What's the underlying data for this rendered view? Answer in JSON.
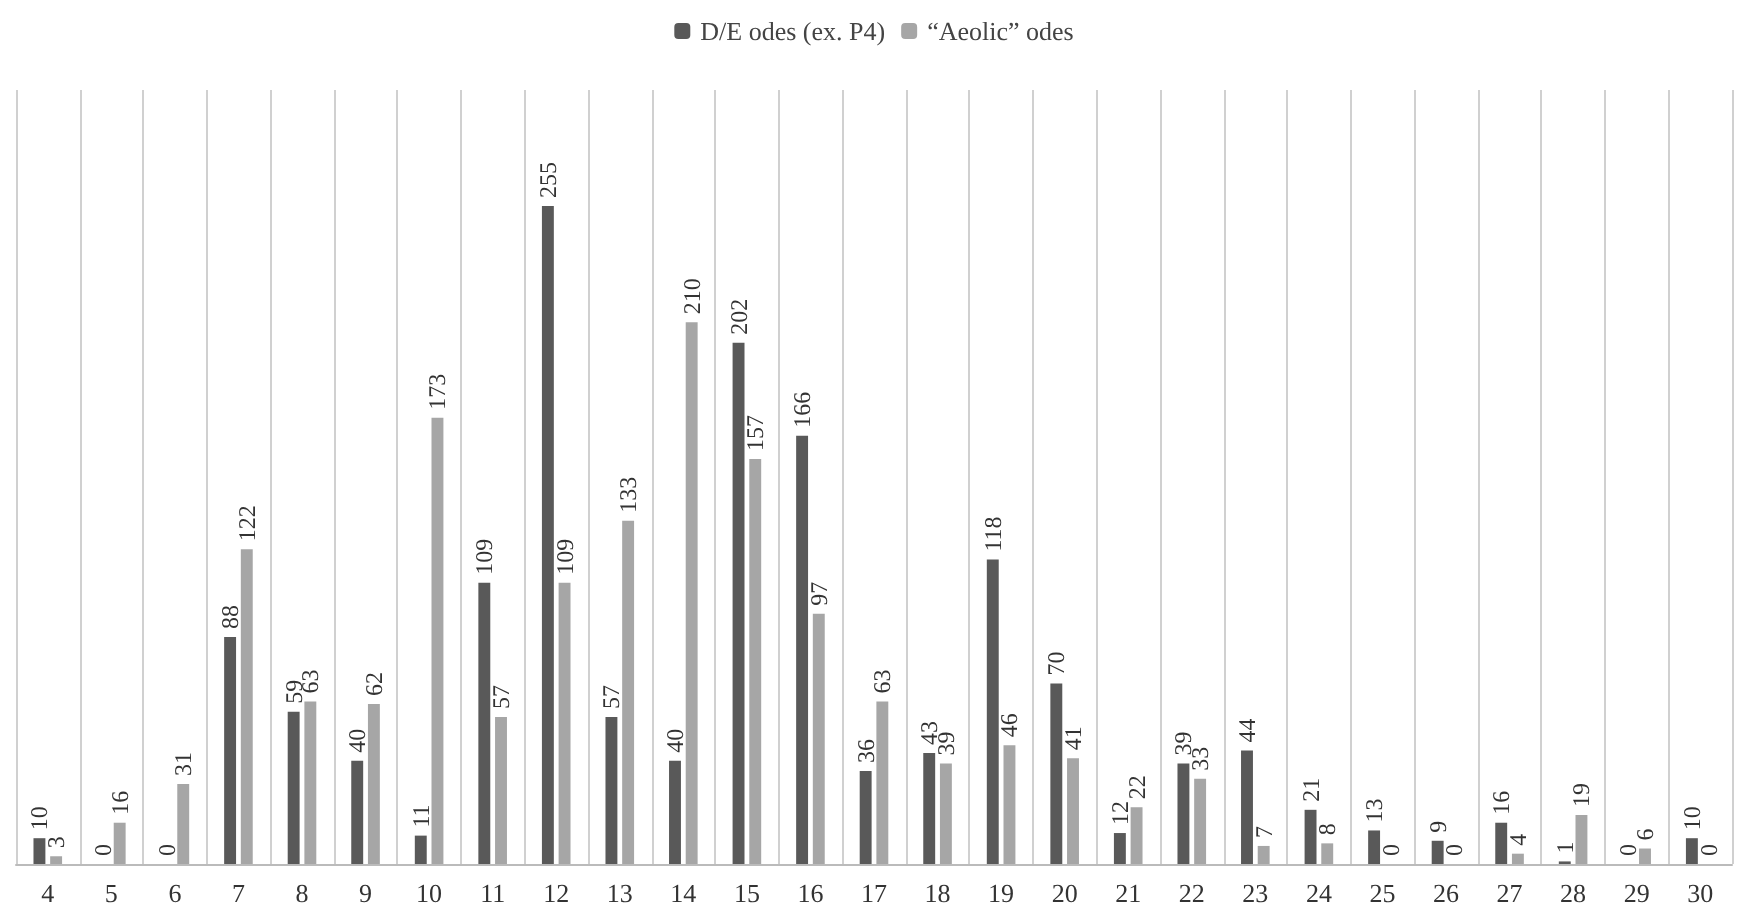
{
  "chart_data": {
    "type": "bar",
    "categories": [
      "4",
      "5",
      "6",
      "7",
      "8",
      "9",
      "10",
      "11",
      "12",
      "13",
      "14",
      "15",
      "16",
      "17",
      "18",
      "19",
      "20",
      "21",
      "22",
      "23",
      "24",
      "25",
      "26",
      "27",
      "28",
      "29",
      "30"
    ],
    "series": [
      {
        "name": "D/E odes (ex. P4)",
        "color": "#595959",
        "values": [
          10,
          0,
          0,
          88,
          59,
          40,
          11,
          109,
          255,
          57,
          40,
          202,
          166,
          36,
          43,
          118,
          70,
          12,
          39,
          44,
          21,
          13,
          9,
          16,
          1,
          0,
          10
        ]
      },
      {
        "name": "“Aeolic” odes",
        "color": "#a6a6a6",
        "values": [
          3,
          16,
          31,
          122,
          63,
          62,
          173,
          57,
          109,
          133,
          210,
          157,
          97,
          63,
          39,
          46,
          41,
          22,
          33,
          7,
          8,
          0,
          0,
          4,
          19,
          6,
          0
        ]
      }
    ],
    "data_labels": true,
    "grid": "x",
    "legend": "top"
  }
}
